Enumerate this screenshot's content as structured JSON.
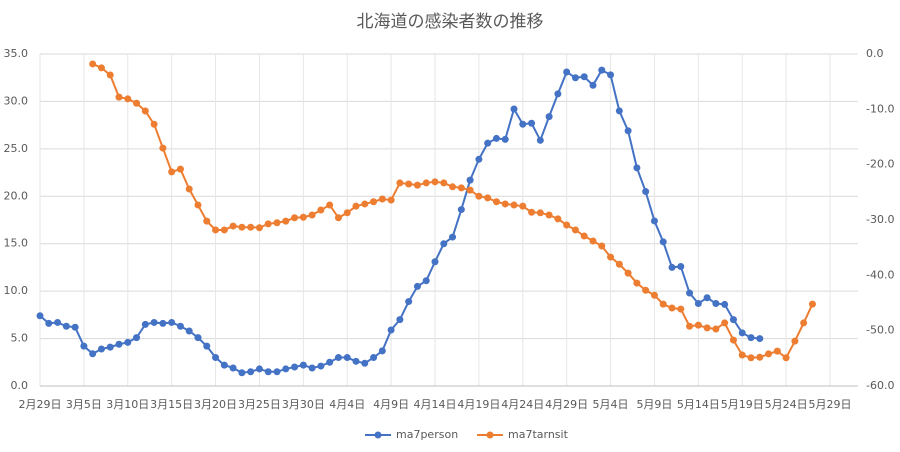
{
  "chart_data": {
    "type": "line",
    "title": "北海道の感染者数の推移",
    "categories": [
      "2月29日",
      null,
      null,
      null,
      null,
      "3月5日",
      null,
      null,
      null,
      null,
      "3月10日",
      null,
      null,
      null,
      null,
      "3月15日",
      null,
      null,
      null,
      null,
      "3月20日",
      null,
      null,
      null,
      null,
      "3月25日",
      null,
      null,
      null,
      null,
      "3月30日",
      null,
      null,
      null,
      null,
      "4月4日",
      null,
      null,
      null,
      null,
      "4月9日",
      null,
      null,
      null,
      null,
      "4月14日",
      null,
      null,
      null,
      null,
      "4月19日",
      null,
      null,
      null,
      null,
      "4月24日",
      null,
      null,
      null,
      null,
      "4月29日",
      null,
      null,
      null,
      null,
      "5月4日",
      null,
      null,
      null,
      null,
      "5月9日",
      null,
      null,
      null,
      null,
      "5月14日",
      null,
      null,
      null,
      null,
      "5月19日",
      null,
      null,
      null,
      null,
      "5月24日",
      null,
      null,
      null,
      null,
      "5月29日"
    ],
    "series": [
      {
        "name": "ma7person",
        "color": "#4472c4",
        "values": [
          7.4,
          6.6,
          6.7,
          6.3,
          6.2,
          4.2,
          3.4,
          3.9,
          4.1,
          4.4,
          4.6,
          5.1,
          6.5,
          6.7,
          6.6,
          6.7,
          6.3,
          5.8,
          5.1,
          4.2,
          3.0,
          2.2,
          1.9,
          1.4,
          1.5,
          1.8,
          1.5,
          1.5,
          1.8,
          2.0,
          2.2,
          1.9,
          2.1,
          2.5,
          3.0,
          3.0,
          2.6,
          2.4,
          3.0,
          3.7,
          5.9,
          7.0,
          8.9,
          10.5,
          11.1,
          13.1,
          15.0,
          15.7,
          18.6,
          21.7,
          23.9,
          25.6,
          26.1,
          26.0,
          29.2,
          27.6,
          27.7,
          25.9,
          28.4,
          30.8,
          33.1,
          32.5,
          32.6,
          31.7,
          33.3,
          32.8,
          29.0,
          26.9,
          23.0,
          20.5,
          17.4,
          15.2,
          12.5,
          12.6,
          9.8,
          8.7,
          9.3,
          8.7,
          8.6,
          7.0,
          5.6,
          5.1,
          5.0,
          null,
          null,
          null,
          null,
          null,
          null,
          null,
          null
        ]
      },
      {
        "name": "ma7tarnsit",
        "color": "#ed7d31",
        "axis": "y2",
        "values": [
          null,
          null,
          null,
          null,
          null,
          null,
          -1.8,
          -2.5,
          -3.8,
          -7.8,
          -8.1,
          -8.9,
          -10.3,
          -12.7,
          -17.0,
          -21.3,
          -20.8,
          -24.4,
          -27.3,
          -30.2,
          -31.8,
          -31.8,
          -31.1,
          -31.3,
          -31.3,
          -31.4,
          -30.7,
          -30.5,
          -30.2,
          -29.6,
          -29.5,
          -29.1,
          -28.2,
          -27.3,
          -29.6,
          -28.7,
          -27.5,
          -27.1,
          -26.7,
          -26.2,
          -26.4,
          -23.3,
          -23.5,
          -23.7,
          -23.3,
          -23.1,
          -23.3,
          -24.0,
          -24.2,
          -24.6,
          -25.7,
          -26.0,
          -26.7,
          -27.1,
          -27.3,
          -27.5,
          -28.6,
          -28.7,
          -29.1,
          -29.8,
          -30.9,
          -31.8,
          -32.9,
          -33.8,
          -34.7,
          -36.7,
          -38.0,
          -39.6,
          -41.4,
          -42.7,
          -43.6,
          -45.2,
          -45.9,
          -46.1,
          -49.2,
          -49.0,
          -49.5,
          -49.7,
          -48.6,
          -51.7,
          -54.4,
          -54.9,
          -54.8,
          -54.2,
          -53.7,
          -54.9,
          -51.9,
          -48.6,
          -45.2,
          null,
          null
        ]
      }
    ],
    "ylim": [
      0,
      35
    ],
    "yticks": [
      {
        "value": 0,
        "label": "0.0"
      },
      {
        "value": 5,
        "label": "5.0"
      },
      {
        "value": 10,
        "label": "10.0"
      },
      {
        "value": 15,
        "label": "15.0"
      },
      {
        "value": 20,
        "label": "20.0"
      },
      {
        "value": 25,
        "label": "25.0"
      },
      {
        "value": 30,
        "label": "30.0"
      },
      {
        "value": 35,
        "label": "35.0"
      }
    ],
    "y2lim": [
      -60,
      0
    ],
    "y2ticks": [
      {
        "value": 0,
        "label": "0.0"
      },
      {
        "value": -10,
        "label": "-10.0"
      },
      {
        "value": -20,
        "label": "-20.0"
      },
      {
        "value": -30,
        "label": "-30.0"
      },
      {
        "value": -40,
        "label": "-40.0"
      },
      {
        "value": -50,
        "label": "-50.0"
      },
      {
        "value": -60,
        "label": "-60.0"
      }
    ],
    "grid": true,
    "legend": "bottom"
  }
}
